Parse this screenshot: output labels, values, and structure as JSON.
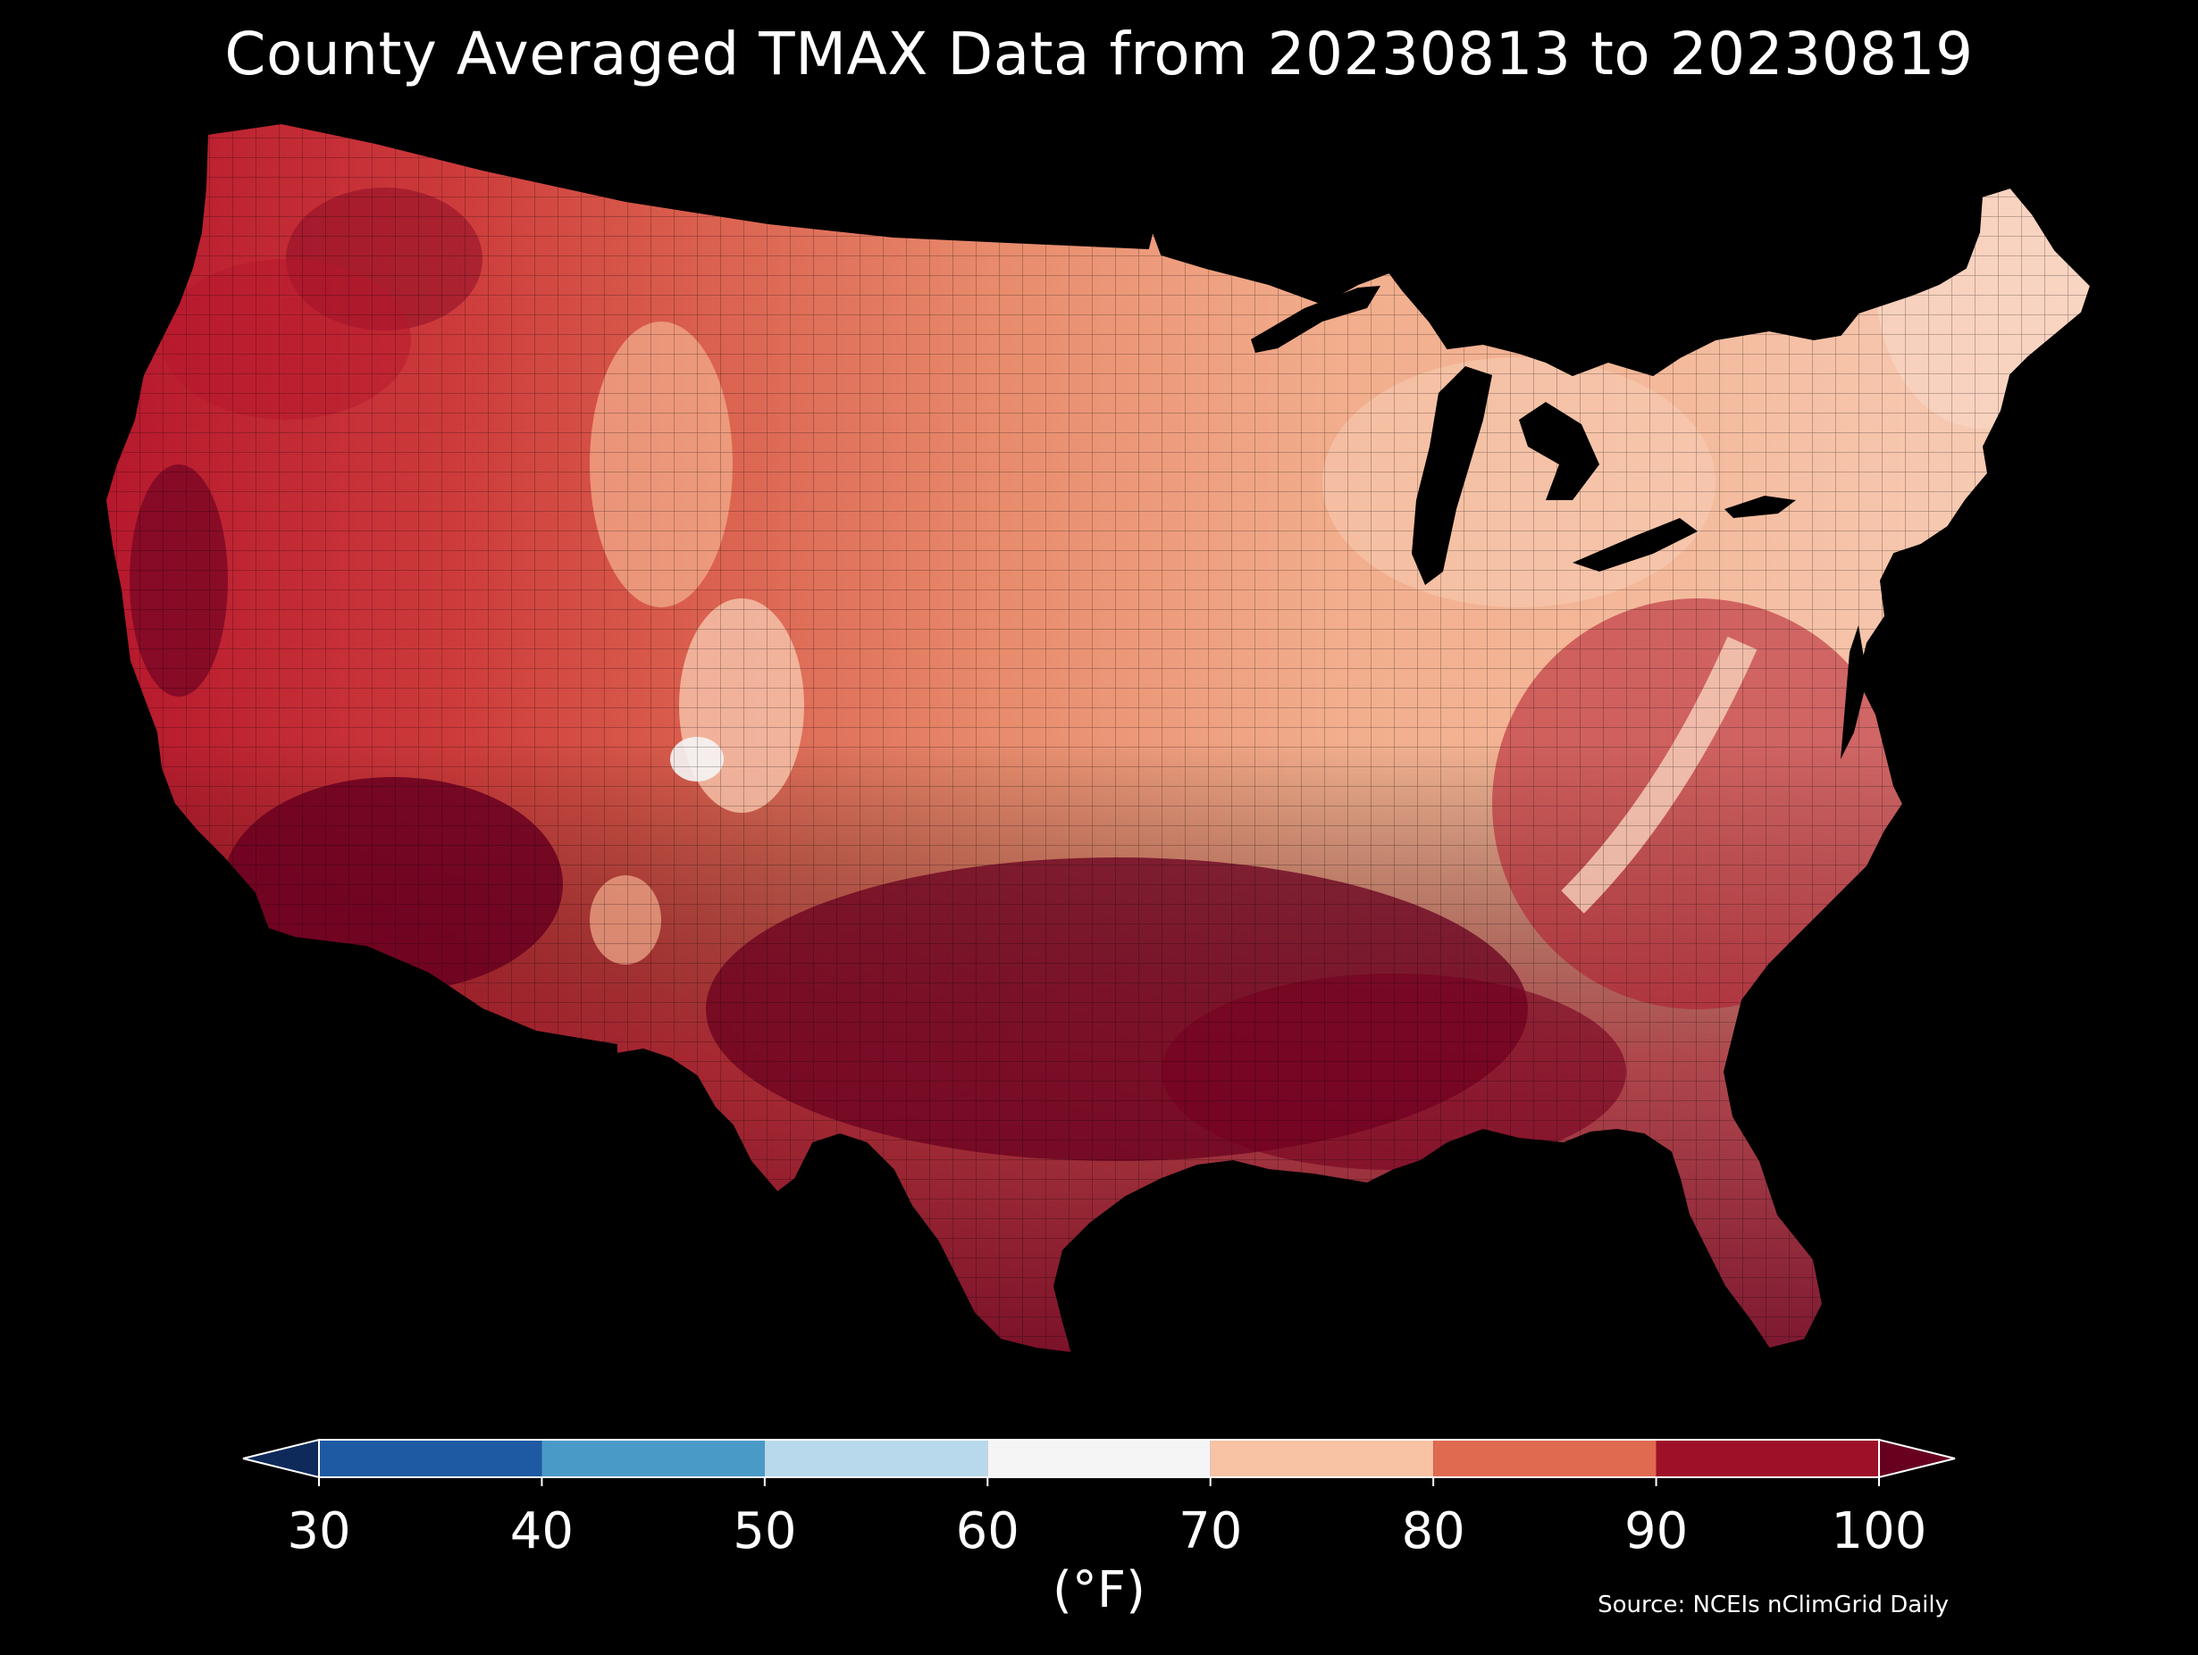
{
  "title": "County Averaged TMAX Data from 20230813 to 20230819",
  "colorbar": {
    "ticks": [
      "30",
      "40",
      "50",
      "60",
      "70",
      "80",
      "90",
      "100"
    ],
    "unit": "(°F)",
    "under_color": "#0d2a5a",
    "over_color": "#67001f",
    "bins": [
      {
        "from": 30,
        "to": 40,
        "color": "#1e5aa3"
      },
      {
        "from": 40,
        "to": 50,
        "color": "#4a9ac8"
      },
      {
        "from": 50,
        "to": 60,
        "color": "#b8d9eb"
      },
      {
        "from": 60,
        "to": 70,
        "color": "#f5f5f5"
      },
      {
        "from": 70,
        "to": 80,
        "color": "#f8c2a4"
      },
      {
        "from": 80,
        "to": 90,
        "color": "#e06a50"
      },
      {
        "from": 90,
        "to": 100,
        "color": "#9e1028"
      }
    ]
  },
  "source": "Source: NCEIs nClimGrid Daily",
  "map": {
    "type": "choropleth",
    "region": "Contiguous United States counties",
    "variable": "TMAX",
    "background": "#000000",
    "water_color": "#000000"
  }
}
